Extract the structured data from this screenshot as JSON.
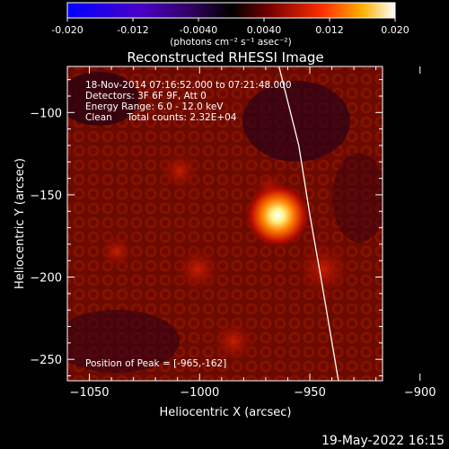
{
  "chart_data": {
    "type": "heatmap",
    "title": "Reconstructed RHESSI Image",
    "xlabel": "Heliocentric X (arcsec)",
    "ylabel": "Heliocentric Y (arcsec)",
    "xlim": [
      -1060,
      -917
    ],
    "ylim": [
      -263,
      -72
    ],
    "x_ticks": [
      -1050,
      -1000,
      -950,
      -900
    ],
    "y_ticks": [
      -100,
      -150,
      -200,
      -250
    ],
    "colorbar": {
      "min": -0.02,
      "max": 0.02,
      "ticks": [
        "-0.020",
        "-0.012",
        "-0.0040",
        "0.0040",
        "0.012",
        "0.020"
      ],
      "unit_label": "(photons cm⁻² s⁻¹ asec⁻²)"
    },
    "annotations": [
      "18-Nov-2014 07:16:52.000 to 07:21:48.000",
      "Detectors: 3F 6F 9F, Att 0",
      "Energy Range: 6.0 - 12.0 keV",
      "Clean     Total counts: 2.32E+04"
    ],
    "peak_label": "Position of Peak = [-965,-162]",
    "peak": {
      "x": -965,
      "y": -162
    },
    "limb": [
      [
        -964,
        -72
      ],
      [
        -955,
        -120
      ],
      [
        -950,
        -162
      ],
      [
        -945,
        -200
      ],
      [
        -937,
        -263
      ]
    ],
    "grid": false
  },
  "footer_date": "19-May-2022 16:15"
}
